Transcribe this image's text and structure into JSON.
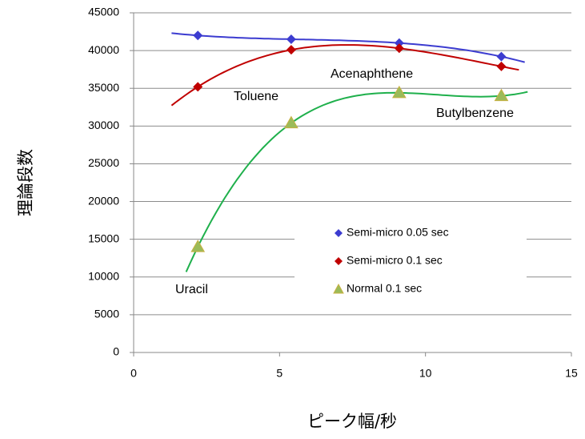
{
  "chart_data": {
    "type": "scatter",
    "x_label": "ピーク幅/秒",
    "y_label": "理論段数",
    "x": [
      2.2,
      5.4,
      9.1,
      12.6
    ],
    "series": [
      {
        "name": "Semi-micro 0.05 sec",
        "color": "#3c3cd0",
        "line_color": "#3c3cd0",
        "marker": "diamond",
        "values": [
          42000,
          41500,
          41000,
          39200
        ]
      },
      {
        "name": "Semi-micro 0.1 sec",
        "color": "#c00000",
        "line_color": "#c00000",
        "marker": "diamond",
        "values": [
          35200,
          40100,
          40300,
          37900
        ]
      },
      {
        "name": "Normal 0.1 sec",
        "color": "#9bbb59",
        "line_color": "#1fb04c",
        "marker": "triangle",
        "values": [
          14000,
          30400,
          34400,
          34000
        ]
      }
    ],
    "annotations": [
      "Uracil",
      "Toluene",
      "Acenaphthene",
      "Butylbenzene"
    ],
    "xlim": [
      0,
      15
    ],
    "xticks": [
      0,
      5,
      10,
      15
    ],
    "ylim": [
      0,
      45000
    ],
    "yticks": [
      0,
      5000,
      10000,
      15000,
      20000,
      25000,
      30000,
      35000,
      40000,
      45000
    ],
    "grid": true
  }
}
